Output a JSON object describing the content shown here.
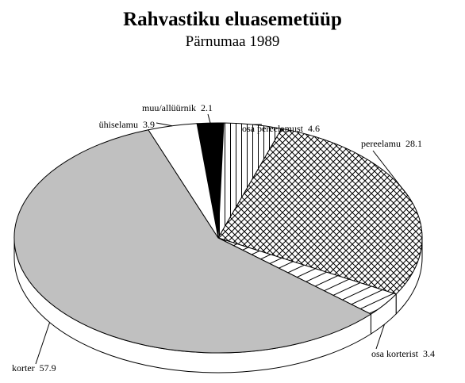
{
  "chart_data": {
    "type": "pie3d",
    "title": "Rahvastiku eluasemetüüp",
    "subtitle": "Pärnumaa 1989",
    "categories": [
      "muu/allüürnik",
      "osa pereelamust",
      "pereelamu",
      "osa korterist",
      "korter",
      "ühiselamu"
    ],
    "values": [
      2.1,
      4.6,
      28.1,
      3.4,
      57.9,
      3.9
    ],
    "colors": [
      "#000000",
      "#000000",
      "#000000",
      "#000000",
      "#c0c0c0",
      "#ffffff"
    ],
    "patterns": [
      "solid",
      "vertical",
      "crosshatch",
      "diagonal",
      "solid",
      "solid"
    ]
  }
}
